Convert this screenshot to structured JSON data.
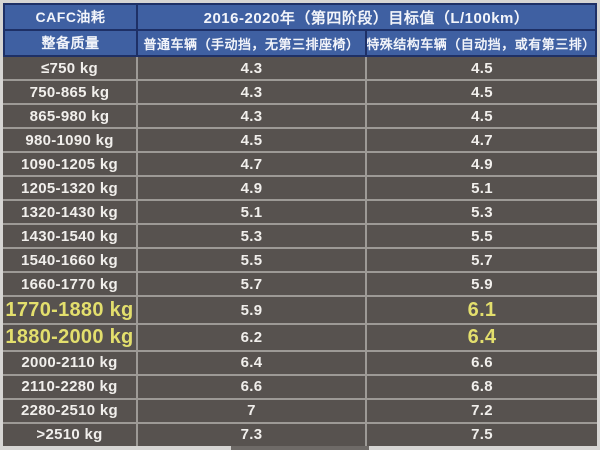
{
  "header": {
    "corner_label": "CAFC油耗",
    "title": "2016-2020年（第四阶段）目标值（L/100km）",
    "col_mass": "整备质量",
    "col_normal": "普通车辆（手动挡，无第三排座椅）",
    "col_special": "特殊结构车辆（自动挡，或有第三排）"
  },
  "colors": {
    "header_blue": "#3f60a2",
    "header_border_navy": "#1e3066",
    "body_gray": "#57524f",
    "divider_gray": "#9d9a96",
    "text_white": "#f1efec",
    "highlight_yellow": "#e3df6d",
    "frame_light": "#d6d5d3"
  },
  "chart_data": {
    "type": "table",
    "title": "2016-2020年（第四阶段）目标值（L/100km）",
    "corner_label": "CAFC油耗",
    "columns": [
      "整备质量",
      "普通车辆（手动挡，无第三排座椅）",
      "特殊结构车辆（自动挡，或有第三排）"
    ],
    "unit": "L/100km",
    "rows": [
      {
        "mass": "≤750 kg",
        "normal": "4.3",
        "special": "4.5",
        "highlight": false
      },
      {
        "mass": "750-865 kg",
        "normal": "4.3",
        "special": "4.5",
        "highlight": false
      },
      {
        "mass": "865-980 kg",
        "normal": "4.3",
        "special": "4.5",
        "highlight": false
      },
      {
        "mass": "980-1090 kg",
        "normal": "4.5",
        "special": "4.7",
        "highlight": false
      },
      {
        "mass": "1090-1205 kg",
        "normal": "4.7",
        "special": "4.9",
        "highlight": false
      },
      {
        "mass": "1205-1320 kg",
        "normal": "4.9",
        "special": "5.1",
        "highlight": false
      },
      {
        "mass": "1320-1430 kg",
        "normal": "5.1",
        "special": "5.3",
        "highlight": false
      },
      {
        "mass": "1430-1540 kg",
        "normal": "5.3",
        "special": "5.5",
        "highlight": false
      },
      {
        "mass": "1540-1660 kg",
        "normal": "5.5",
        "special": "5.7",
        "highlight": false
      },
      {
        "mass": "1660-1770 kg",
        "normal": "5.7",
        "special": "5.9",
        "highlight": false
      },
      {
        "mass": "1770-1880 kg",
        "normal": "5.9",
        "special": "6.1",
        "highlight": true
      },
      {
        "mass": "1880-2000 kg",
        "normal": "6.2",
        "special": "6.4",
        "highlight": true
      },
      {
        "mass": "2000-2110 kg",
        "normal": "6.4",
        "special": "6.6",
        "highlight": false
      },
      {
        "mass": "2110-2280 kg",
        "normal": "6.6",
        "special": "6.8",
        "highlight": false
      },
      {
        "mass": "2280-2510 kg",
        "normal": "7",
        "special": "7.2",
        "highlight": false
      },
      {
        "mass": ">2510 kg",
        "normal": "7.3",
        "special": "7.5",
        "highlight": false
      }
    ],
    "highlighted_rows": [
      "1770-1880 kg",
      "1880-2000 kg"
    ]
  }
}
